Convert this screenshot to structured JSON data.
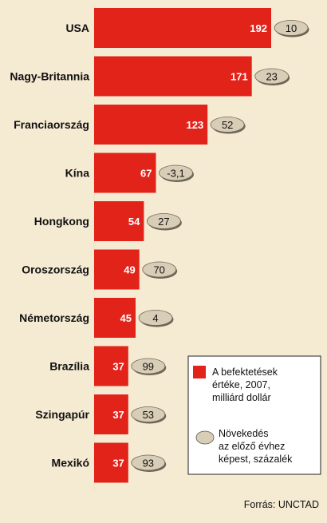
{
  "chart_data": {
    "type": "bar",
    "orientation": "horizontal",
    "categories": [
      "USA",
      "Nagy-Britannia",
      "Franciaország",
      "Kína",
      "Hongkong",
      "Oroszország",
      "Németország",
      "Brazília",
      "Szingapúr",
      "Mexikó"
    ],
    "series": [
      {
        "name": "A befektetések értéke, 2007, milliárd dollár",
        "values": [
          192,
          171,
          123,
          67,
          54,
          49,
          45,
          37,
          37,
          37
        ],
        "color": "#e2231a"
      },
      {
        "name": "Növekedés az előző évhez képest, százalék",
        "values": [
          10,
          23,
          52,
          -3.1,
          27,
          70,
          4,
          99,
          53,
          93
        ],
        "color": "#d8cdb6"
      }
    ],
    "value_labels": [
      "192",
      "171",
      "123",
      "67",
      "54",
      "49",
      "45",
      "37",
      "37",
      "37"
    ],
    "growth_labels": [
      "10",
      "23",
      "52",
      "-3,1",
      "27",
      "70",
      "4",
      "99",
      "53",
      "93"
    ],
    "legend": {
      "bar": [
        "A befektetések",
        "értéke, 2007,",
        "milliárd dollár"
      ],
      "oval": [
        "Növekedés",
        "az előző évhez",
        "képest, százalék"
      ]
    },
    "source": "Forrás: UNCTAD",
    "grid": false,
    "legend_placement": "bottom-right"
  }
}
